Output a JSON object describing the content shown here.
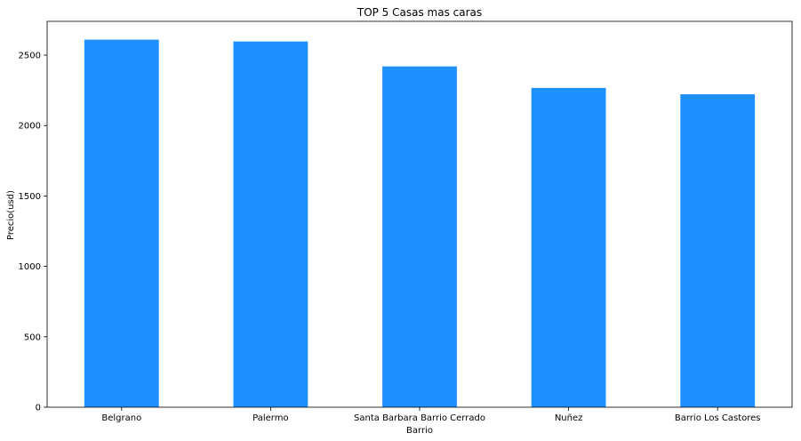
{
  "chart_data": {
    "type": "bar",
    "title": "TOP 5 Casas mas caras",
    "xlabel": "Barrio",
    "ylabel": "Precio(usd)",
    "categories": [
      "Belgrano",
      "Palermo",
      "Santa Barbara Barrio Cerrado",
      "Nuñez",
      "Barrio Los Castores"
    ],
    "values": [
      2610,
      2597,
      2420,
      2267,
      2222
    ],
    "ylim": [
      0,
      2740
    ],
    "yticks": [
      0,
      500,
      1000,
      1500,
      2000,
      2500
    ],
    "bar_color": "#1e90ff",
    "grid": false,
    "legend": "none"
  }
}
